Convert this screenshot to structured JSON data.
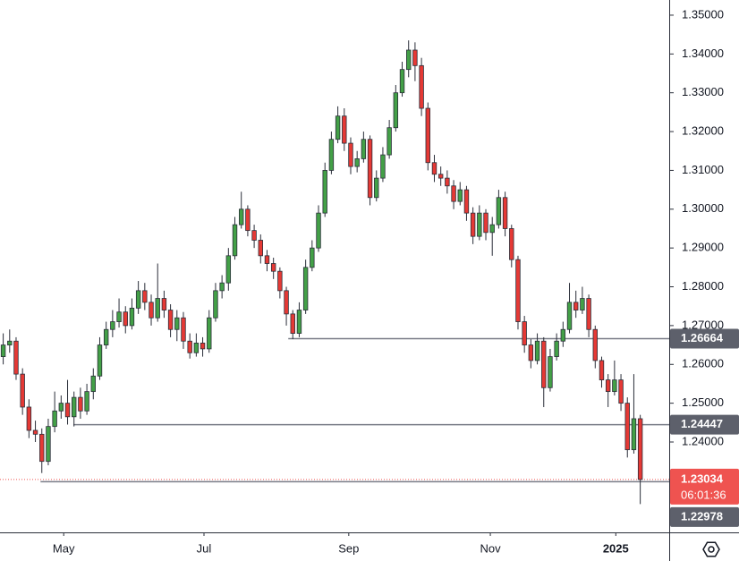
{
  "chart_data": {
    "type": "candlestick",
    "up_color": "#43a047",
    "down_color": "#e53935",
    "wick_color": "#2a2e39",
    "xlim": [
      -0.5,
      103.5
    ],
    "xticks": [
      {
        "value": 9.4,
        "label": "May"
      },
      {
        "value": 31.2,
        "label": "Jul"
      },
      {
        "value": 53.7,
        "label": "Sep"
      },
      {
        "value": 75.7,
        "label": "Nov"
      },
      {
        "value": 95.2,
        "label": "2025"
      }
    ],
    "ylim": [
      1.21671,
      1.35391
    ],
    "yticks": [
      {
        "value": 1.23,
        "label": "1.23000"
      },
      {
        "value": 1.24,
        "label": "1.24000"
      },
      {
        "value": 1.25,
        "label": "1.25000"
      },
      {
        "value": 1.26,
        "label": "1.26000"
      },
      {
        "value": 1.27,
        "label": "1.27000"
      },
      {
        "value": 1.28,
        "label": "1.28000"
      },
      {
        "value": 1.29,
        "label": "1.29000"
      },
      {
        "value": 1.3,
        "label": "1.30000"
      },
      {
        "value": 1.31,
        "label": "1.31000"
      },
      {
        "value": 1.32,
        "label": "1.32000"
      },
      {
        "value": 1.33,
        "label": "1.33000"
      },
      {
        "value": 1.34,
        "label": "1.34000"
      },
      {
        "value": 1.35,
        "label": "1.35000"
      }
    ],
    "ohlc": [
      [
        1.262,
        1.268,
        1.26,
        1.265
      ],
      [
        1.265,
        1.269,
        1.263,
        1.266
      ],
      [
        1.266,
        1.267,
        1.256,
        1.2575
      ],
      [
        1.2575,
        1.259,
        1.247,
        1.249
      ],
      [
        1.249,
        1.251,
        1.241,
        1.243
      ],
      [
        1.243,
        1.2455,
        1.24,
        1.242
      ],
      [
        1.242,
        1.2435,
        1.232,
        1.235
      ],
      [
        1.235,
        1.246,
        1.234,
        1.244
      ],
      [
        1.244,
        1.253,
        1.2425,
        1.248
      ],
      [
        1.248,
        1.252,
        1.246,
        1.25
      ],
      [
        1.25,
        1.256,
        1.2445,
        1.2465
      ],
      [
        1.2465,
        1.253,
        1.244,
        1.2515
      ],
      [
        1.2515,
        1.254,
        1.246,
        1.248
      ],
      [
        1.248,
        1.255,
        1.247,
        1.253
      ],
      [
        1.253,
        1.259,
        1.251,
        1.257
      ],
      [
        1.257,
        1.267,
        1.256,
        1.265
      ],
      [
        1.265,
        1.271,
        1.264,
        1.269
      ],
      [
        1.269,
        1.274,
        1.267,
        1.271
      ],
      [
        1.271,
        1.277,
        1.2695,
        1.2735
      ],
      [
        1.2735,
        1.275,
        1.268,
        1.27
      ],
      [
        1.27,
        1.277,
        1.269,
        1.2745
      ],
      [
        1.2745,
        1.2815,
        1.273,
        1.279
      ],
      [
        1.279,
        1.281,
        1.274,
        1.276
      ],
      [
        1.276,
        1.278,
        1.27,
        1.272
      ],
      [
        1.272,
        1.286,
        1.271,
        1.277
      ],
      [
        1.277,
        1.279,
        1.272,
        1.274
      ],
      [
        1.274,
        1.2755,
        1.267,
        1.269
      ],
      [
        1.269,
        1.274,
        1.266,
        1.272
      ],
      [
        1.272,
        1.2735,
        1.264,
        1.266
      ],
      [
        1.266,
        1.268,
        1.2615,
        1.263
      ],
      [
        1.263,
        1.268,
        1.262,
        1.2655
      ],
      [
        1.2655,
        1.267,
        1.262,
        1.264
      ],
      [
        1.264,
        1.274,
        1.263,
        1.272
      ],
      [
        1.272,
        1.281,
        1.271,
        1.279
      ],
      [
        1.279,
        1.283,
        1.277,
        1.281
      ],
      [
        1.281,
        1.29,
        1.279,
        1.288
      ],
      [
        1.288,
        1.298,
        1.287,
        1.296
      ],
      [
        1.296,
        1.3045,
        1.295,
        1.3
      ],
      [
        1.3,
        1.301,
        1.293,
        1.2945
      ],
      [
        1.2945,
        1.296,
        1.29,
        1.292
      ],
      [
        1.292,
        1.2935,
        1.286,
        1.288
      ],
      [
        1.288,
        1.2895,
        1.284,
        1.286
      ],
      [
        1.286,
        1.2875,
        1.282,
        1.284
      ],
      [
        1.284,
        1.285,
        1.277,
        1.279
      ],
      [
        1.279,
        1.28,
        1.27,
        1.273
      ],
      [
        1.273,
        1.274,
        1.2665,
        1.268
      ],
      [
        1.268,
        1.276,
        1.267,
        1.274
      ],
      [
        1.274,
        1.287,
        1.273,
        1.285
      ],
      [
        1.285,
        1.292,
        1.284,
        1.29
      ],
      [
        1.29,
        1.301,
        1.289,
        1.299
      ],
      [
        1.299,
        1.312,
        1.298,
        1.31
      ],
      [
        1.31,
        1.32,
        1.309,
        1.318
      ],
      [
        1.318,
        1.3265,
        1.317,
        1.324
      ],
      [
        1.324,
        1.326,
        1.315,
        1.317
      ],
      [
        1.317,
        1.3185,
        1.309,
        1.311
      ],
      [
        1.311,
        1.315,
        1.3095,
        1.313
      ],
      [
        1.313,
        1.32,
        1.312,
        1.318
      ],
      [
        1.318,
        1.319,
        1.301,
        1.303
      ],
      [
        1.303,
        1.31,
        1.302,
        1.308
      ],
      [
        1.308,
        1.316,
        1.307,
        1.314
      ],
      [
        1.314,
        1.323,
        1.313,
        1.321
      ],
      [
        1.321,
        1.332,
        1.32,
        1.33
      ],
      [
        1.33,
        1.338,
        1.329,
        1.336
      ],
      [
        1.336,
        1.3435,
        1.334,
        1.341
      ],
      [
        1.341,
        1.343,
        1.333,
        1.337
      ],
      [
        1.337,
        1.339,
        1.324,
        1.326
      ],
      [
        1.326,
        1.3275,
        1.31,
        1.312
      ],
      [
        1.312,
        1.314,
        1.307,
        1.309
      ],
      [
        1.309,
        1.311,
        1.306,
        1.308
      ],
      [
        1.308,
        1.31,
        1.304,
        1.306
      ],
      [
        1.306,
        1.3075,
        1.3,
        1.302
      ],
      [
        1.302,
        1.307,
        1.301,
        1.305
      ],
      [
        1.305,
        1.306,
        1.297,
        1.299
      ],
      [
        1.299,
        1.3005,
        1.291,
        1.293
      ],
      [
        1.293,
        1.301,
        1.292,
        1.299
      ],
      [
        1.299,
        1.3,
        1.292,
        1.294
      ],
      [
        1.294,
        1.298,
        1.288,
        1.296
      ],
      [
        1.296,
        1.305,
        1.295,
        1.303
      ],
      [
        1.303,
        1.3045,
        1.293,
        1.295
      ],
      [
        1.295,
        1.296,
        1.285,
        1.287
      ],
      [
        1.287,
        1.288,
        1.269,
        1.271
      ],
      [
        1.271,
        1.2725,
        1.263,
        1.265
      ],
      [
        1.265,
        1.2665,
        1.259,
        1.261
      ],
      [
        1.261,
        1.268,
        1.26,
        1.266
      ],
      [
        1.266,
        1.267,
        1.249,
        1.254
      ],
      [
        1.254,
        1.264,
        1.253,
        1.262
      ],
      [
        1.262,
        1.268,
        1.261,
        1.266
      ],
      [
        1.266,
        1.271,
        1.2645,
        1.269
      ],
      [
        1.269,
        1.281,
        1.268,
        1.276
      ],
      [
        1.276,
        1.279,
        1.272,
        1.274
      ],
      [
        1.274,
        1.28,
        1.273,
        1.277
      ],
      [
        1.277,
        1.278,
        1.267,
        1.269
      ],
      [
        1.269,
        1.27,
        1.259,
        1.261
      ],
      [
        1.261,
        1.262,
        1.254,
        1.256
      ],
      [
        1.256,
        1.2575,
        1.249,
        1.253
      ],
      [
        1.253,
        1.261,
        1.252,
        1.256
      ],
      [
        1.256,
        1.2575,
        1.248,
        1.25
      ],
      [
        1.25,
        1.2515,
        1.236,
        1.238
      ],
      [
        1.238,
        1.2575,
        1.237,
        1.246
      ],
      [
        1.246,
        1.247,
        1.224,
        1.23034
      ]
    ],
    "levels": [
      {
        "price": 1.26664,
        "x_start": 44.3,
        "color": "#787b86"
      },
      {
        "price": 1.24447,
        "x_start": 10.9,
        "color": "#787b86"
      },
      {
        "price": 1.22978,
        "x_start": 5.8,
        "color": "#787b86"
      }
    ],
    "last_price": 1.23034,
    "countdown": "06:01:36",
    "last_color": "#ef5350"
  }
}
